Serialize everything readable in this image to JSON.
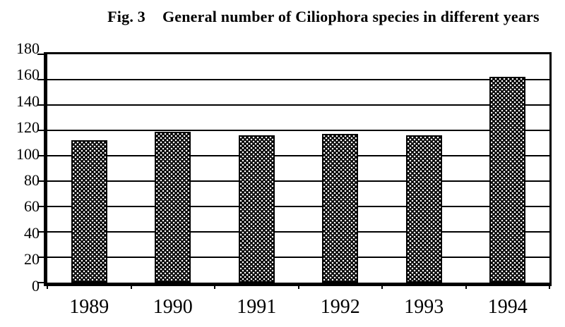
{
  "figure": {
    "label": "Fig. 3",
    "title": "General number of Ciliophora species in different years"
  },
  "chart_data": {
    "type": "bar",
    "title": "Fig. 3 General number of Ciliophora species in different years",
    "categories": [
      "1989",
      "1990",
      "1991",
      "1992",
      "1993",
      "1994"
    ],
    "values": [
      112,
      119,
      116,
      117,
      116,
      162
    ],
    "series_name": "General number of Ciliophora species",
    "xlabel": "",
    "ylabel": "",
    "ylim": [
      0,
      180
    ],
    "ytick_interval": 20,
    "yticks": [
      180,
      160,
      140,
      120,
      100,
      80,
      60,
      40,
      20,
      0
    ],
    "grid": "horizontal gridlines every 20 units, full plot border",
    "legend": "none",
    "bar_style": {
      "fill_color": "#000000",
      "pattern": "white-dot-lattice",
      "pattern_color": "#ffffff",
      "border_color": "#000000"
    },
    "colors": {
      "axis": "#000000",
      "background": "#ffffff",
      "text": "#000000"
    }
  }
}
